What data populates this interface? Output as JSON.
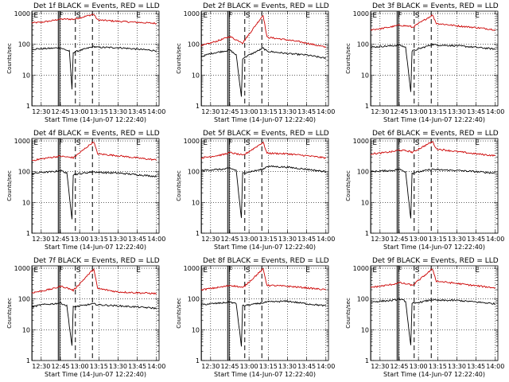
{
  "chart_data": [
    {
      "type": "line",
      "title": "Det 1f BLACK = Events, RED = LLD",
      "xlabel": "Start Time (14-Jun-07 12:22:40)",
      "ylabel": "Counts/sec",
      "xticks": [
        "12:30",
        "12:45",
        "13:00",
        "13:15",
        "13:30",
        "13:45",
        "14:00"
      ],
      "yticks": [
        "1",
        "10",
        "100",
        "1000"
      ],
      "xlim": [
        "12:22:40",
        "14:02:00"
      ],
      "ylim": [
        1,
        1200
      ],
      "yscale": "log",
      "grid": "dotted",
      "markers": [
        {
          "label": "E",
          "time": "12:23:30"
        },
        {
          "label": "F",
          "time": "12:43:20"
        },
        {
          "label": "S",
          "time": "12:56:40"
        },
        {
          "label": "E",
          "time": "13:43:30"
        }
      ],
      "vlines_solid": [
        "12:43:20",
        "12:44:30"
      ],
      "vlines_dashed": [
        "12:56:40",
        "13:10:00"
      ],
      "series": [
        {
          "color": "#cc0000",
          "x": [
            "12:22:40",
            "12:30",
            "12:40",
            "12:43",
            "12:48",
            "12:54",
            "12:55",
            "13:11",
            "13:14",
            "13:30",
            "13:45",
            "14:00"
          ],
          "y": [
            500,
            520,
            600,
            650,
            660,
            660,
            650,
            950,
            620,
            560,
            520,
            480
          ]
        },
        {
          "color": "#000000",
          "x": [
            "12:22:40",
            "12:30",
            "12:40",
            "12:43",
            "12:46",
            "12:52",
            "12:54",
            "12:55",
            "13:11",
            "13:14",
            "13:30",
            "13:45",
            "14:00"
          ],
          "y": [
            70,
            72,
            75,
            78,
            74,
            60,
            3.5,
            55,
            85,
            80,
            78,
            70,
            62
          ]
        }
      ]
    },
    {
      "type": "line",
      "title": "Det 2f BLACK = Events, RED = LLD",
      "xlabel": "Start Time (14-Jun-07 12:22:40)",
      "ylabel": "Counts/sec",
      "xticks": [
        "12:30",
        "12:45",
        "13:00",
        "13:15",
        "13:30",
        "13:45",
        "14:00"
      ],
      "yticks": [
        "1",
        "10",
        "100",
        "1000"
      ],
      "xlim": [
        "12:22:40",
        "14:02:00"
      ],
      "ylim": [
        1,
        1200
      ],
      "yscale": "log",
      "grid": "dotted",
      "markers": [
        {
          "label": "E",
          "time": "12:23:30"
        },
        {
          "label": "F",
          "time": "12:43:20"
        },
        {
          "label": "S",
          "time": "12:56:40"
        },
        {
          "label": "E",
          "time": "13:43:30"
        }
      ],
      "vlines_solid": [
        "12:43:20",
        "12:44:30"
      ],
      "vlines_dashed": [
        "12:56:40",
        "13:10:00"
      ],
      "series": [
        {
          "color": "#cc0000",
          "x": [
            "12:22:40",
            "12:30",
            "12:40",
            "12:45",
            "12:50",
            "12:54",
            "12:55",
            "13:11",
            "13:14",
            "13:30",
            "13:45",
            "14:00"
          ],
          "y": [
            90,
            110,
            150,
            180,
            140,
            120,
            110,
            900,
            170,
            140,
            110,
            80
          ]
        },
        {
          "color": "#000000",
          "x": [
            "12:22:40",
            "12:30",
            "12:40",
            "12:45",
            "12:50",
            "12:54",
            "12:55",
            "13:11",
            "13:14",
            "13:30",
            "13:45",
            "14:00"
          ],
          "y": [
            40,
            50,
            60,
            65,
            45,
            2,
            35,
            75,
            60,
            50,
            45,
            35
          ]
        }
      ]
    },
    {
      "type": "line",
      "title": "Det 3f BLACK = Events, RED = LLD",
      "xlabel": "Start Time (14-Jun-07 12:22:40)",
      "ylabel": "Counts/sec",
      "xticks": [
        "12:30",
        "12:45",
        "13:00",
        "13:15",
        "13:30",
        "13:45",
        "14:00"
      ],
      "yticks": [
        "1",
        "10",
        "100",
        "1000"
      ],
      "xlim": [
        "12:22:40",
        "14:02:00"
      ],
      "ylim": [
        1,
        1200
      ],
      "yscale": "log",
      "grid": "dotted",
      "markers": [
        {
          "label": "E",
          "time": "12:23:30"
        },
        {
          "label": "F",
          "time": "12:43:20"
        },
        {
          "label": "S",
          "time": "12:56:40"
        },
        {
          "label": "E",
          "time": "13:43:30"
        }
      ],
      "vlines_solid": [
        "12:43:20",
        "12:44:30"
      ],
      "vlines_dashed": [
        "12:56:40",
        "13:10:00"
      ],
      "series": [
        {
          "color": "#cc0000",
          "x": [
            "12:22:40",
            "12:30",
            "12:40",
            "12:45",
            "12:50",
            "12:54",
            "12:55",
            "13:11",
            "13:14",
            "13:30",
            "13:45",
            "14:00"
          ],
          "y": [
            300,
            320,
            380,
            420,
            400,
            380,
            350,
            900,
            480,
            400,
            350,
            300
          ]
        },
        {
          "color": "#000000",
          "x": [
            "12:22:40",
            "12:30",
            "12:40",
            "12:45",
            "12:50",
            "12:54",
            "12:55",
            "13:11",
            "13:14",
            "13:30",
            "13:45",
            "14:00"
          ],
          "y": [
            80,
            85,
            90,
            95,
            80,
            3,
            60,
            100,
            95,
            90,
            80,
            70
          ]
        }
      ]
    },
    {
      "type": "line",
      "title": "Det 4f BLACK = Events, RED = LLD",
      "xlabel": "Start Time (14-Jun-07 12:22:40)",
      "ylabel": "Counts/sec",
      "xticks": [
        "12:30",
        "12:45",
        "13:00",
        "13:15",
        "13:30",
        "13:45",
        "14:00"
      ],
      "yticks": [
        "1",
        "10",
        "100",
        "1000"
      ],
      "xlim": [
        "12:22:40",
        "14:02:00"
      ],
      "ylim": [
        1,
        1200
      ],
      "yscale": "log",
      "grid": "dotted",
      "markers": [
        {
          "label": "E",
          "time": "12:23:30"
        },
        {
          "label": "F",
          "time": "12:43:20"
        },
        {
          "label": "S",
          "time": "12:56:40"
        },
        {
          "label": "E",
          "time": "13:43:30"
        }
      ],
      "vlines_solid": [
        "12:43:20",
        "12:44:30"
      ],
      "vlines_dashed": [
        "12:56:40",
        "13:10:00"
      ],
      "series": [
        {
          "color": "#cc0000",
          "x": [
            "12:22:40",
            "12:30",
            "12:40",
            "12:45",
            "12:50",
            "12:54",
            "12:55",
            "13:11",
            "13:14",
            "13:30",
            "13:45",
            "14:00"
          ],
          "y": [
            230,
            260,
            300,
            320,
            300,
            290,
            280,
            950,
            380,
            330,
            280,
            240
          ]
        },
        {
          "color": "#000000",
          "x": [
            "12:22:40",
            "12:30",
            "12:40",
            "12:45",
            "12:50",
            "12:54",
            "12:55",
            "13:11",
            "13:14",
            "13:30",
            "13:45",
            "14:00"
          ],
          "y": [
            85,
            95,
            100,
            110,
            90,
            3,
            80,
            100,
            95,
            90,
            80,
            70
          ]
        }
      ]
    },
    {
      "type": "line",
      "title": "Det 5f BLACK = Events, RED = LLD",
      "xlabel": "Start Time (14-Jun-07 12:22:40)",
      "ylabel": "Counts/sec",
      "xticks": [
        "12:30",
        "12:45",
        "13:00",
        "13:15",
        "13:30",
        "13:45",
        "14:00"
      ],
      "yticks": [
        "1",
        "10",
        "100",
        "1000"
      ],
      "xlim": [
        "12:22:40",
        "14:02:00"
      ],
      "ylim": [
        1,
        1200
      ],
      "yscale": "log",
      "grid": "dotted",
      "markers": [
        {
          "label": "E",
          "time": "12:23:30"
        },
        {
          "label": "F",
          "time": "12:43:20"
        },
        {
          "label": "S",
          "time": "12:56:40"
        },
        {
          "label": "E",
          "time": "13:43:30"
        }
      ],
      "vlines_solid": [
        "12:43:20",
        "12:44:30"
      ],
      "vlines_dashed": [
        "12:56:40",
        "13:10:00"
      ],
      "series": [
        {
          "color": "#cc0000",
          "x": [
            "12:22:40",
            "12:30",
            "12:40",
            "12:45",
            "12:50",
            "12:54",
            "12:55",
            "13:11",
            "13:14",
            "13:30",
            "13:45",
            "14:00"
          ],
          "y": [
            280,
            310,
            360,
            420,
            380,
            350,
            330,
            900,
            400,
            380,
            330,
            280
          ]
        },
        {
          "color": "#000000",
          "x": [
            "12:22:40",
            "12:30",
            "12:40",
            "12:45",
            "12:50",
            "12:54",
            "12:55",
            "13:11",
            "13:14",
            "13:30",
            "13:45",
            "14:00"
          ],
          "y": [
            110,
            115,
            120,
            130,
            110,
            3,
            90,
            120,
            150,
            140,
            120,
            100
          ]
        }
      ]
    },
    {
      "type": "line",
      "title": "Det 6f BLACK = Events, RED = LLD",
      "xlabel": "Start Time (14-Jun-07 12:22:40)",
      "ylabel": "Counts/sec",
      "xticks": [
        "12:30",
        "12:45",
        "13:00",
        "13:15",
        "13:30",
        "13:45",
        "14:00"
      ],
      "yticks": [
        "1",
        "10",
        "100",
        "1000"
      ],
      "xlim": [
        "12:22:40",
        "14:02:00"
      ],
      "ylim": [
        1,
        1200
      ],
      "yscale": "log",
      "grid": "dotted",
      "markers": [
        {
          "label": "E",
          "time": "12:23:30"
        },
        {
          "label": "F",
          "time": "12:43:20"
        },
        {
          "label": "S",
          "time": "12:56:40"
        },
        {
          "label": "E",
          "time": "13:43:30"
        }
      ],
      "vlines_solid": [
        "12:43:20",
        "12:44:30"
      ],
      "vlines_dashed": [
        "12:56:40",
        "13:10:00"
      ],
      "series": [
        {
          "color": "#cc0000",
          "x": [
            "12:22:40",
            "12:30",
            "12:40",
            "12:45",
            "12:50",
            "12:54",
            "12:55",
            "13:11",
            "13:14",
            "13:30",
            "13:45",
            "14:00"
          ],
          "y": [
            380,
            400,
            450,
            500,
            480,
            450,
            420,
            950,
            550,
            450,
            380,
            330
          ]
        },
        {
          "color": "#000000",
          "x": [
            "12:22:40",
            "12:30",
            "12:40",
            "12:45",
            "12:50",
            "12:54",
            "12:55",
            "13:11",
            "13:14",
            "13:30",
            "13:45",
            "14:00"
          ],
          "y": [
            100,
            105,
            110,
            120,
            100,
            3,
            90,
            120,
            115,
            110,
            100,
            90
          ]
        }
      ]
    },
    {
      "type": "line",
      "title": "Det 7f BLACK = Events, RED = LLD",
      "xlabel": "Start Time (14-Jun-07 12:22:40)",
      "ylabel": "Counts/sec",
      "xticks": [
        "12:30",
        "12:45",
        "13:00",
        "13:15",
        "13:30",
        "13:45",
        "14:00"
      ],
      "yticks": [
        "1",
        "10",
        "100",
        "1000"
      ],
      "xlim": [
        "12:22:40",
        "14:02:00"
      ],
      "ylim": [
        1,
        1200
      ],
      "yscale": "log",
      "grid": "dotted",
      "markers": [
        {
          "label": "E",
          "time": "12:23:30"
        },
        {
          "label": "F",
          "time": "12:43:20"
        },
        {
          "label": "S",
          "time": "12:56:40"
        },
        {
          "label": "E",
          "time": "13:43:30"
        }
      ],
      "vlines_solid": [
        "12:43:20",
        "12:44:30"
      ],
      "vlines_dashed": [
        "12:56:40",
        "13:10:00"
      ],
      "series": [
        {
          "color": "#cc0000",
          "x": [
            "12:22:40",
            "12:30",
            "12:40",
            "12:45",
            "12:50",
            "12:54",
            "12:55",
            "13:11",
            "13:14",
            "13:30",
            "13:45",
            "14:00"
          ],
          "y": [
            160,
            180,
            220,
            260,
            230,
            200,
            190,
            950,
            220,
            170,
            160,
            150
          ]
        },
        {
          "color": "#000000",
          "x": [
            "12:22:40",
            "12:30",
            "12:40",
            "12:45",
            "12:50",
            "12:54",
            "12:55",
            "13:11",
            "13:14",
            "13:30",
            "13:45",
            "14:00"
          ],
          "y": [
            55,
            65,
            70,
            75,
            60,
            3,
            55,
            70,
            65,
            60,
            55,
            50
          ]
        }
      ]
    },
    {
      "type": "line",
      "title": "Det 8f BLACK = Events, RED = LLD",
      "xlabel": "Start Time (14-Jun-07 12:22:40)",
      "ylabel": "Counts/sec",
      "xticks": [
        "12:30",
        "12:45",
        "13:00",
        "13:15",
        "13:30",
        "13:45",
        "14:00"
      ],
      "yticks": [
        "1",
        "10",
        "100",
        "1000"
      ],
      "xlim": [
        "12:22:40",
        "14:02:00"
      ],
      "ylim": [
        1,
        1200
      ],
      "yscale": "log",
      "grid": "dotted",
      "markers": [
        {
          "label": "E",
          "time": "12:23:30"
        },
        {
          "label": "F",
          "time": "12:43:20"
        },
        {
          "label": "S",
          "time": "12:56:40"
        },
        {
          "label": "E",
          "time": "13:43:30"
        }
      ],
      "vlines_solid": [
        "12:43:20",
        "12:44:30"
      ],
      "vlines_dashed": [
        "12:56:40",
        "13:10:00"
      ],
      "series": [
        {
          "color": "#cc0000",
          "x": [
            "12:22:40",
            "12:30",
            "12:40",
            "12:45",
            "12:50",
            "12:54",
            "12:55",
            "13:11",
            "13:14",
            "13:30",
            "13:45",
            "14:00"
          ],
          "y": [
            200,
            220,
            250,
            280,
            260,
            240,
            230,
            950,
            280,
            260,
            230,
            200
          ]
        },
        {
          "color": "#000000",
          "x": [
            "12:22:40",
            "12:30",
            "12:40",
            "12:45",
            "12:50",
            "12:54",
            "12:55",
            "13:11",
            "13:14",
            "13:30",
            "13:45",
            "14:00"
          ],
          "y": [
            65,
            70,
            75,
            80,
            70,
            3,
            60,
            75,
            80,
            85,
            70,
            60
          ]
        }
      ]
    },
    {
      "type": "line",
      "title": "Det 9f BLACK = Events, RED = LLD",
      "xlabel": "Start Time (14-Jun-07 12:22:40)",
      "ylabel": "Counts/sec",
      "xticks": [
        "12:30",
        "12:45",
        "13:00",
        "13:15",
        "13:30",
        "13:45",
        "14:00"
      ],
      "yticks": [
        "1",
        "10",
        "100",
        "1000"
      ],
      "xlim": [
        "12:22:40",
        "14:02:00"
      ],
      "ylim": [
        1,
        1200
      ],
      "yscale": "log",
      "grid": "dotted",
      "markers": [
        {
          "label": "E",
          "time": "12:23:30"
        },
        {
          "label": "F",
          "time": "12:43:20"
        },
        {
          "label": "S",
          "time": "12:56:40"
        },
        {
          "label": "E",
          "time": "13:43:30"
        }
      ],
      "vlines_solid": [
        "12:43:20",
        "12:44:30"
      ],
      "vlines_dashed": [
        "12:56:40",
        "13:10:00"
      ],
      "series": [
        {
          "color": "#cc0000",
          "x": [
            "12:22:40",
            "12:30",
            "12:40",
            "12:45",
            "12:50",
            "12:54",
            "12:55",
            "13:11",
            "13:14",
            "13:30",
            "13:45",
            "14:00"
          ],
          "y": [
            240,
            260,
            300,
            340,
            310,
            290,
            270,
            950,
            380,
            320,
            270,
            230
          ]
        },
        {
          "color": "#000000",
          "x": [
            "12:22:40",
            "12:30",
            "12:40",
            "12:45",
            "12:50",
            "12:54",
            "12:55",
            "13:11",
            "13:14",
            "13:30",
            "13:45",
            "14:00"
          ],
          "y": [
            80,
            85,
            90,
            100,
            85,
            3,
            70,
            95,
            90,
            90,
            80,
            70
          ]
        }
      ]
    }
  ]
}
